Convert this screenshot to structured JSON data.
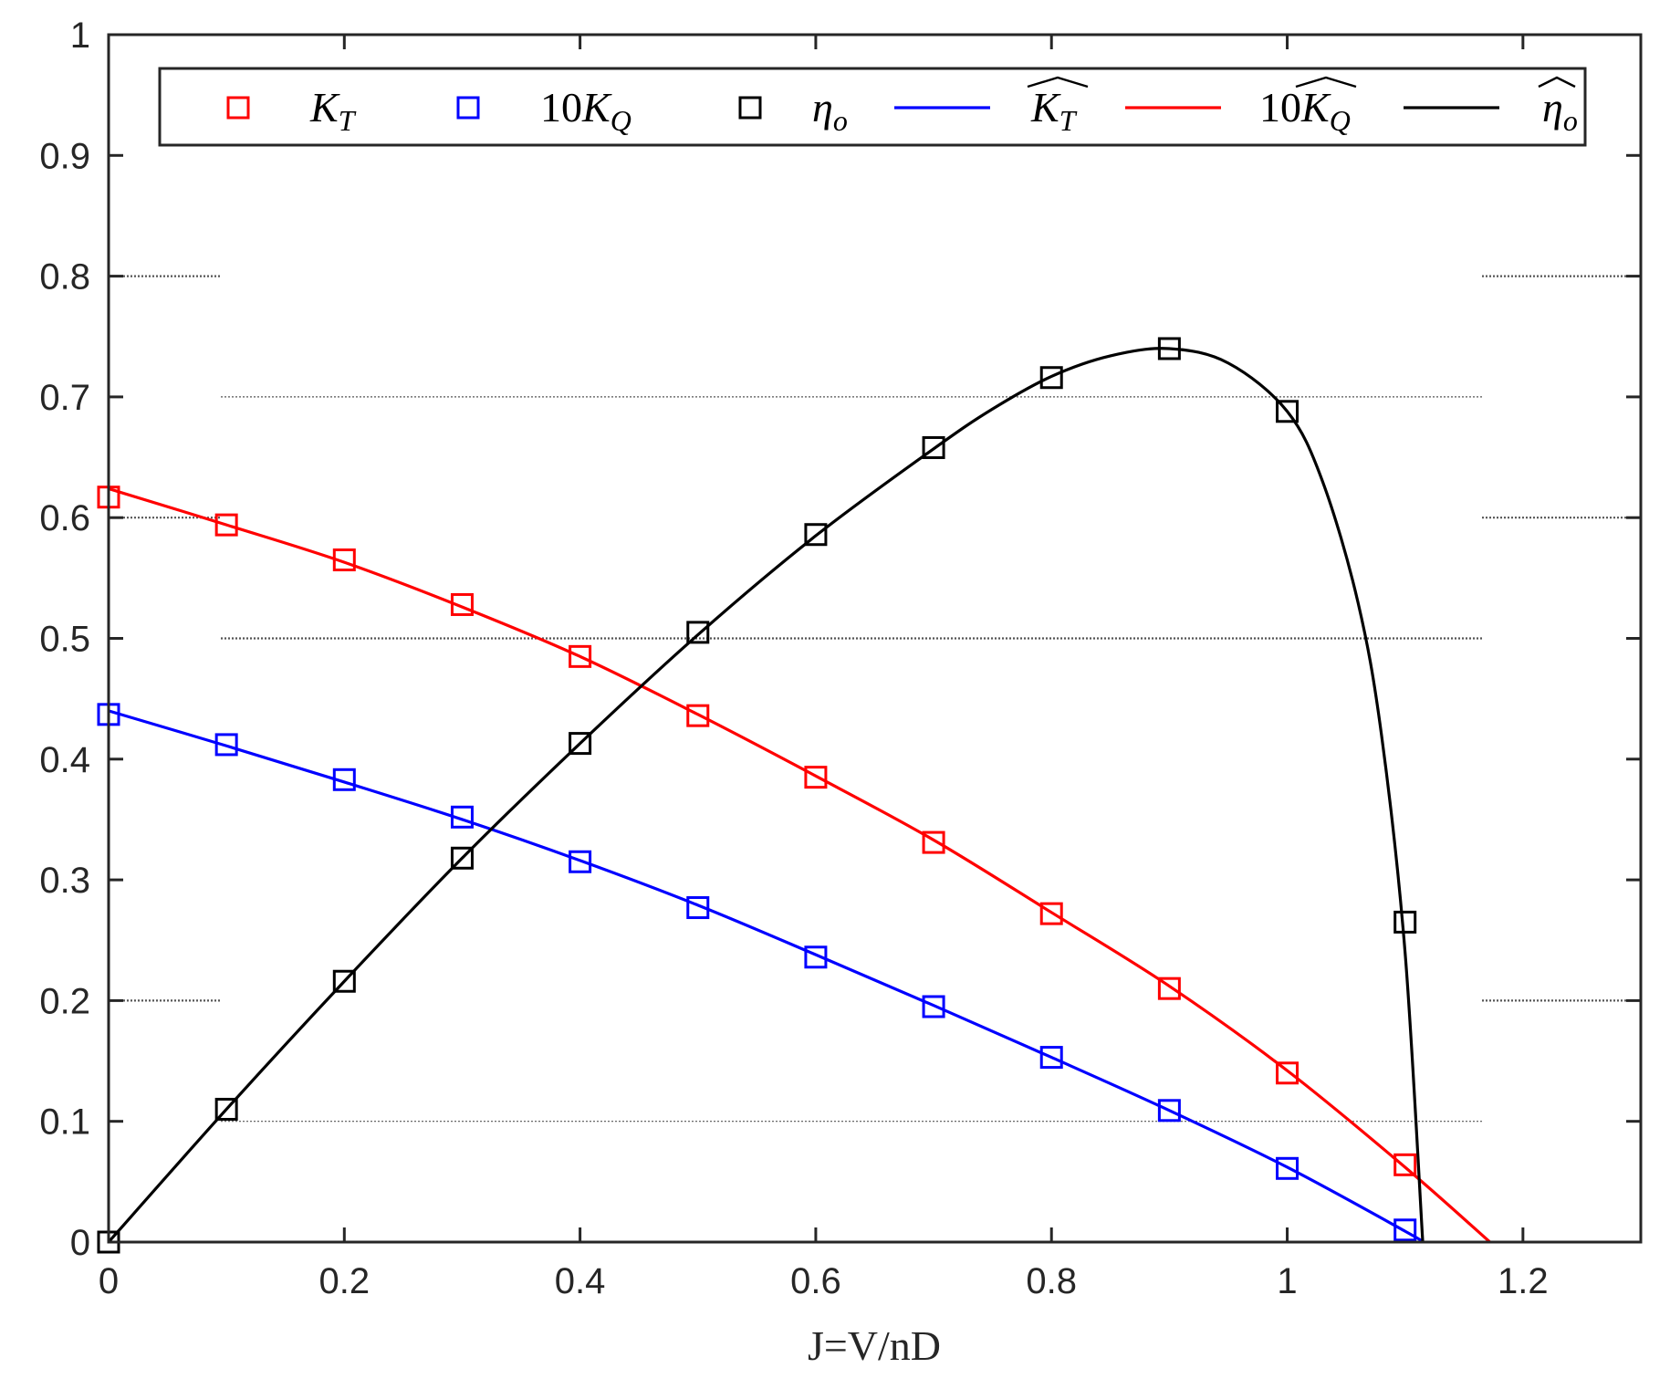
{
  "chart_data": {
    "type": "line",
    "title": "",
    "xlabel": "J=V/nD",
    "ylabel": "",
    "xlim": [
      0,
      1.3
    ],
    "ylim": [
      0,
      1
    ],
    "xticks": [
      0,
      0.2,
      0.4,
      0.6,
      0.8,
      1,
      1.2
    ],
    "xtick_labels": [
      "0",
      "0.2",
      "0.4",
      "0.6",
      "0.8",
      "1",
      "1.2"
    ],
    "yticks": [
      0,
      0.1,
      0.2,
      0.3,
      0.4,
      0.5,
      0.6,
      0.7,
      0.8,
      0.9,
      1
    ],
    "ytick_labels": [
      "0",
      "0.1",
      "0.2",
      "0.3",
      "0.4",
      "0.5",
      "0.6",
      "0.7",
      "0.8",
      "0.9",
      "1"
    ],
    "grid": "partial horizontal dotted gridlines",
    "legend_position": "top, horizontal, inside axes",
    "x": [
      0,
      0.1,
      0.2,
      0.3,
      0.4,
      0.5,
      0.6,
      0.7,
      0.8,
      0.9,
      1.0,
      1.1
    ],
    "series": [
      {
        "name": "K_T",
        "legend_label": "K_T",
        "kind": "markers",
        "marker": "square",
        "color": "#ff0000",
        "values": [
          0.617,
          0.594,
          0.565,
          0.528,
          0.485,
          0.436,
          0.385,
          0.331,
          0.272,
          0.21,
          0.14,
          0.064
        ]
      },
      {
        "name": "10K_Q",
        "legend_label": "10K_Q",
        "kind": "markers",
        "marker": "square",
        "color": "#0000ff",
        "values": [
          0.437,
          0.412,
          0.383,
          0.352,
          0.315,
          0.277,
          0.236,
          0.195,
          0.153,
          0.109,
          0.061,
          0.01
        ]
      },
      {
        "name": "eta_o",
        "legend_label": "η_o",
        "kind": "markers",
        "marker": "square",
        "color": "#000000",
        "values": [
          0.0,
          0.11,
          0.216,
          0.318,
          0.413,
          0.505,
          0.586,
          0.658,
          0.716,
          0.74,
          0.688,
          0.265
        ]
      },
      {
        "name": "K_T_hat",
        "legend_label": "K_T (fitted, hat)",
        "kind": "line",
        "color": "#0000ff",
        "x": [
          0,
          0.1,
          0.2,
          0.3,
          0.4,
          0.5,
          0.6,
          0.7,
          0.8,
          0.9,
          1.0,
          1.1,
          1.115
        ],
        "values": [
          0.44,
          0.411,
          0.381,
          0.35,
          0.316,
          0.279,
          0.238,
          0.196,
          0.153,
          0.109,
          0.062,
          0.009,
          0.0
        ]
      },
      {
        "name": "10K_Q_hat",
        "legend_label": "10K_Q (fitted, hat)",
        "kind": "line",
        "color": "#ff0000",
        "x": [
          0,
          0.1,
          0.2,
          0.3,
          0.4,
          0.5,
          0.6,
          0.7,
          0.8,
          0.9,
          1.0,
          1.1,
          1.172
        ],
        "values": [
          0.624,
          0.594,
          0.563,
          0.526,
          0.485,
          0.437,
          0.386,
          0.333,
          0.273,
          0.212,
          0.142,
          0.062,
          0.0
        ]
      },
      {
        "name": "eta_o_hat",
        "legend_label": "η_o (fitted, hat)",
        "kind": "line",
        "color": "#000000",
        "x": [
          0,
          0.1,
          0.2,
          0.3,
          0.4,
          0.5,
          0.6,
          0.7,
          0.75,
          0.8,
          0.85,
          0.9,
          0.95,
          1.0,
          1.03,
          1.06,
          1.08,
          1.1,
          1.115
        ],
        "values": [
          0.0,
          0.11,
          0.216,
          0.318,
          0.413,
          0.503,
          0.585,
          0.657,
          0.69,
          0.717,
          0.734,
          0.74,
          0.728,
          0.688,
          0.63,
          0.53,
          0.42,
          0.24,
          0.0
        ]
      }
    ]
  },
  "legend": {
    "items": [
      {
        "label_main": "K",
        "label_sub": "T",
        "prefix": "",
        "hat": false,
        "swatch": "marker",
        "color": "#ff0000"
      },
      {
        "label_main": "K",
        "label_sub": "Q",
        "prefix": "10",
        "hat": false,
        "swatch": "marker",
        "color": "#0000ff"
      },
      {
        "label_main": "η",
        "label_sub": "o",
        "prefix": "",
        "hat": false,
        "swatch": "marker",
        "color": "#000000"
      },
      {
        "label_main": "K",
        "label_sub": "T",
        "prefix": "",
        "hat": true,
        "swatch": "line",
        "color": "#0000ff"
      },
      {
        "label_main": "K",
        "label_sub": "Q",
        "prefix": "10",
        "hat": true,
        "swatch": "line",
        "color": "#ff0000"
      },
      {
        "label_main": "η",
        "label_sub": "o",
        "prefix": "",
        "hat": true,
        "swatch": "line",
        "color": "#000000"
      }
    ]
  },
  "axes": {
    "xlabel": "J=V/nD",
    "axis_color": "#262626",
    "grid_color": "#555555"
  }
}
